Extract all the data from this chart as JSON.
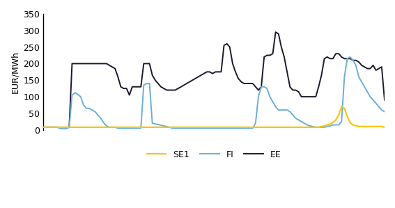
{
  "title": "",
  "ylabel": "EUR/MWh",
  "ylim": [
    0,
    350
  ],
  "yticks": [
    0,
    50,
    100,
    150,
    200,
    250,
    300,
    350
  ],
  "line_colors": {
    "SE1": "#f5c518",
    "FI": "#6baed6",
    "EE": "#1a1a2e"
  },
  "SE1": [
    8,
    8,
    8,
    8,
    8,
    8,
    8,
    8,
    8,
    8,
    8,
    8,
    8,
    8,
    8,
    8,
    8,
    8,
    8,
    8,
    8,
    8,
    8,
    8,
    8,
    8,
    8,
    8,
    8,
    8,
    8,
    8,
    8,
    8,
    8,
    8,
    8,
    8,
    8,
    8,
    8,
    8,
    8,
    8,
    8,
    8,
    8,
    8,
    8,
    8,
    8,
    8,
    8,
    8,
    8,
    8,
    8,
    8,
    8,
    8,
    8,
    8,
    8,
    8,
    8,
    8,
    8,
    8,
    8,
    8,
    8,
    8,
    8,
    8,
    8,
    8,
    8,
    8,
    8,
    8,
    8,
    8,
    8,
    8,
    8,
    8,
    8,
    8,
    8,
    8,
    8,
    8,
    8,
    8,
    8,
    8,
    8,
    10,
    12,
    15,
    18,
    22,
    30,
    45,
    70,
    65,
    40,
    22,
    15,
    12,
    10,
    10,
    10,
    10,
    10,
    10,
    10,
    10,
    10,
    8
  ],
  "FI": [
    8,
    8,
    8,
    8,
    8,
    8,
    5,
    5,
    5,
    8,
    105,
    112,
    107,
    100,
    75,
    65,
    65,
    60,
    55,
    45,
    35,
    22,
    12,
    8,
    8,
    8,
    5,
    5,
    5,
    5,
    5,
    5,
    5,
    5,
    5,
    135,
    140,
    140,
    20,
    18,
    16,
    14,
    12,
    10,
    8,
    5,
    5,
    5,
    5,
    5,
    5,
    5,
    5,
    5,
    5,
    5,
    5,
    5,
    5,
    5,
    5,
    5,
    5,
    5,
    5,
    5,
    5,
    5,
    5,
    5,
    5,
    5,
    5,
    5,
    20,
    100,
    130,
    130,
    125,
    100,
    85,
    70,
    60,
    60,
    60,
    60,
    55,
    45,
    35,
    30,
    25,
    20,
    15,
    12,
    10,
    8,
    8,
    8,
    8,
    10,
    12,
    15,
    15,
    15,
    25,
    160,
    215,
    220,
    210,
    195,
    160,
    145,
    130,
    115,
    100,
    90,
    80,
    70,
    60,
    55
  ],
  "EE": [
    8,
    8,
    8,
    8,
    8,
    8,
    5,
    5,
    5,
    8,
    200,
    200,
    200,
    200,
    200,
    200,
    200,
    200,
    200,
    200,
    200,
    200,
    200,
    195,
    190,
    185,
    160,
    130,
    125,
    125,
    105,
    130,
    130,
    130,
    130,
    200,
    200,
    200,
    165,
    150,
    140,
    130,
    125,
    120,
    120,
    120,
    120,
    125,
    130,
    135,
    140,
    145,
    150,
    155,
    160,
    165,
    170,
    175,
    175,
    170,
    175,
    175,
    175,
    255,
    260,
    250,
    200,
    175,
    155,
    145,
    140,
    140,
    140,
    140,
    130,
    120,
    130,
    220,
    225,
    225,
    230,
    295,
    290,
    250,
    220,
    175,
    130,
    120,
    120,
    115,
    100,
    100,
    100,
    100,
    100,
    100,
    130,
    165,
    215,
    220,
    215,
    215,
    230,
    230,
    220,
    215,
    215,
    215,
    210,
    210,
    205,
    195,
    190,
    185,
    185,
    195,
    180,
    185,
    190,
    90
  ]
}
